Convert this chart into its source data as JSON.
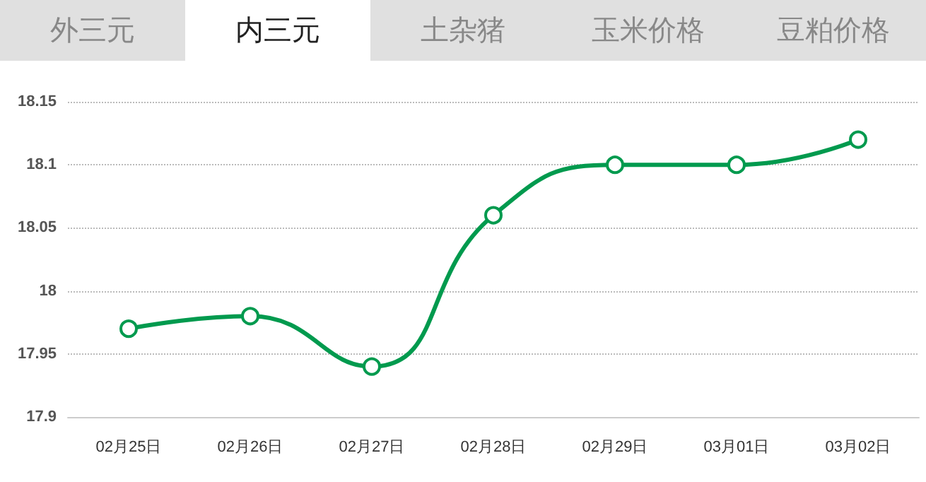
{
  "chart_data": {
    "type": "line",
    "annotations": [
      "外三元",
      "内三元",
      "土杂猪",
      "玉米价格",
      "豆粕价格"
    ],
    "categories": [
      "02月25日",
      "02月26日",
      "02月27日",
      "02月28日",
      "02月29日",
      "03月01日",
      "03月02日"
    ],
    "series": [
      {
        "color": "#009a4e",
        "values": [
          17.97,
          17.98,
          17.94,
          18.06,
          18.1,
          18.1,
          18.12
        ]
      }
    ],
    "ylim": [
      17.9,
      18.15
    ],
    "yticks": [
      17.9,
      17.95,
      18,
      18.05,
      18.1,
      18.15
    ],
    "grid": "y",
    "marker": "circle",
    "line_style": "solid"
  }
}
